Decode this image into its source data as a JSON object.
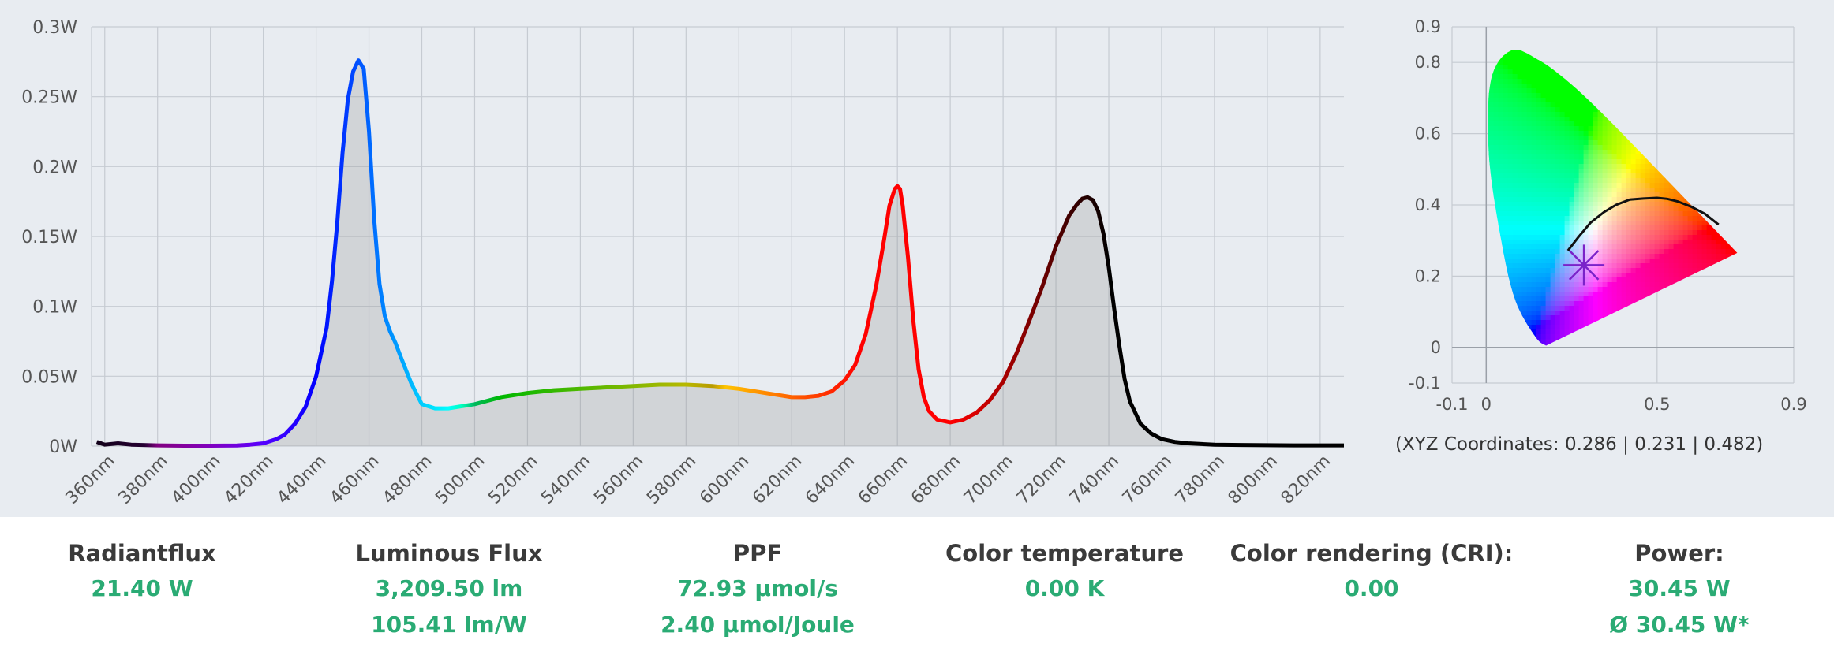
{
  "chart_data": [
    {
      "type": "line",
      "title": "",
      "xlabel": "",
      "ylabel": "",
      "x_unit": "nm",
      "y_unit": "W",
      "xlim": [
        355,
        829
      ],
      "ylim": [
        0,
        0.3
      ],
      "grid": true,
      "area_fill": true,
      "x_ticks": [
        360,
        380,
        400,
        420,
        440,
        460,
        480,
        500,
        520,
        540,
        560,
        580,
        600,
        620,
        640,
        660,
        680,
        700,
        720,
        740,
        760,
        780,
        800,
        820
      ],
      "x_tick_labels": [
        "360nm",
        "380nm",
        "400nm",
        "420nm",
        "440nm",
        "460nm",
        "480nm",
        "500nm",
        "520nm",
        "540nm",
        "560nm",
        "580nm",
        "600nm",
        "620nm",
        "640nm",
        "660nm",
        "680nm",
        "700nm",
        "720nm",
        "740nm",
        "760nm",
        "780nm",
        "800nm",
        "820nm"
      ],
      "y_ticks": [
        0,
        0.05,
        0.1,
        0.15,
        0.2,
        0.25,
        0.3
      ],
      "y_tick_labels": [
        "0W",
        "0.05W",
        "0.1W",
        "0.15W",
        "0.2W",
        "0.25W",
        "0.3W"
      ],
      "series": [
        {
          "x": [
            357,
            360,
            365,
            370,
            380,
            390,
            400,
            410,
            415,
            420,
            425,
            428,
            432,
            436,
            440,
            444,
            446,
            448,
            450,
            452,
            454,
            456,
            458,
            460,
            462,
            464,
            466,
            468,
            470,
            472,
            476,
            480,
            485,
            490,
            500,
            510,
            520,
            530,
            540,
            550,
            560,
            570,
            580,
            590,
            600,
            610,
            620,
            625,
            630,
            635,
            640,
            644,
            648,
            652,
            655,
            657,
            659,
            660,
            661,
            662,
            664,
            666,
            668,
            670,
            672,
            675,
            680,
            685,
            690,
            695,
            700,
            705,
            710,
            715,
            720,
            725,
            728,
            730,
            732,
            734,
            736,
            738,
            740,
            742,
            744,
            746,
            748,
            752,
            756,
            760,
            765,
            770,
            780,
            790,
            800,
            810,
            820,
            829
          ],
          "y": [
            0.003,
            0.001,
            0.002,
            0.001,
            0.0005,
            0.0003,
            0.0003,
            0.0004,
            0.001,
            0.002,
            0.005,
            0.008,
            0.016,
            0.028,
            0.05,
            0.085,
            0.118,
            0.16,
            0.21,
            0.248,
            0.268,
            0.276,
            0.27,
            0.225,
            0.162,
            0.116,
            0.093,
            0.082,
            0.074,
            0.064,
            0.045,
            0.03,
            0.027,
            0.027,
            0.03,
            0.035,
            0.038,
            0.04,
            0.041,
            0.042,
            0.043,
            0.044,
            0.044,
            0.043,
            0.041,
            0.038,
            0.035,
            0.035,
            0.036,
            0.039,
            0.047,
            0.058,
            0.08,
            0.115,
            0.148,
            0.172,
            0.184,
            0.186,
            0.184,
            0.172,
            0.135,
            0.09,
            0.055,
            0.035,
            0.025,
            0.019,
            0.017,
            0.019,
            0.024,
            0.033,
            0.046,
            0.066,
            0.09,
            0.115,
            0.143,
            0.165,
            0.173,
            0.177,
            0.178,
            0.176,
            0.168,
            0.152,
            0.128,
            0.099,
            0.072,
            0.048,
            0.032,
            0.016,
            0.009,
            0.005,
            0.003,
            0.002,
            0.001,
            0.0008,
            0.0006,
            0.0005,
            0.0005,
            0.0005
          ]
        }
      ]
    },
    {
      "type": "scatter",
      "title": "",
      "xlabel": "",
      "ylabel": "",
      "xlim": [
        -0.1,
        0.9
      ],
      "ylim": [
        -0.1,
        0.9
      ],
      "grid": true,
      "x_ticks": [
        -0.1,
        0,
        0.5,
        0.9
      ],
      "x_tick_labels": [
        "-0.1",
        "0",
        "0.5",
        "0.9"
      ],
      "y_ticks": [
        -0.1,
        0,
        0.2,
        0.4,
        0.6,
        0.8,
        0.9
      ],
      "y_tick_labels": [
        "-0.1",
        "0",
        "0.2",
        "0.4",
        "0.6",
        "0.8",
        "0.9"
      ],
      "locus": {
        "x": [
          0.175,
          0.144,
          0.085,
          0.045,
          0.008,
          0.0139,
          0.0743,
          0.1547,
          0.2296,
          0.3016,
          0.3731,
          0.4441,
          0.5125,
          0.5752,
          0.627,
          0.6658,
          0.6915,
          0.7347
        ],
        "y": [
          0.005,
          0.0297,
          0.1327,
          0.295,
          0.538,
          0.7502,
          0.8338,
          0.8059,
          0.7543,
          0.6923,
          0.6245,
          0.5547,
          0.4866,
          0.4242,
          0.3725,
          0.334,
          0.3083,
          0.2653
        ]
      },
      "planckian": {
        "x": [
          0.239,
          0.27,
          0.305,
          0.345,
          0.38,
          0.42,
          0.46,
          0.5,
          0.53,
          0.56,
          0.6,
          0.64,
          0.68
        ],
        "y": [
          0.272,
          0.31,
          0.35,
          0.38,
          0.4,
          0.415,
          0.418,
          0.42,
          0.417,
          0.41,
          0.395,
          0.375,
          0.345
        ]
      },
      "points": [
        {
          "x": 0.286,
          "y": 0.231
        }
      ],
      "caption": "(XYZ Coordinates: 0.286 | 0.231 | 0.482)"
    }
  ],
  "stats": [
    {
      "label": "Radiantflux",
      "values": [
        "21.40 W"
      ]
    },
    {
      "label": "Luminous Flux",
      "values": [
        "3,209.50 lm",
        "105.41 lm/W"
      ]
    },
    {
      "label": "PPF",
      "values": [
        "72.93 µmol/s",
        "2.40 µmol/Joule"
      ]
    },
    {
      "label": "Color temperature",
      "values": [
        "0.00 K"
      ]
    },
    {
      "label": "Color rendering (CRI):",
      "values": [
        "0.00"
      ]
    },
    {
      "label": "Power:",
      "values": [
        "30.45 W",
        "Ø 30.45 W*"
      ]
    }
  ]
}
